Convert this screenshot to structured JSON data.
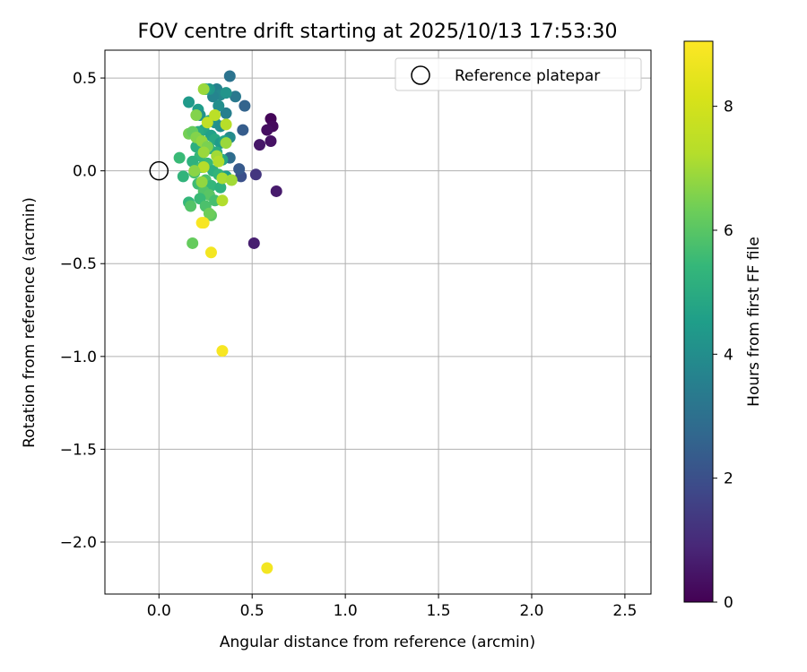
{
  "chart_data": {
    "type": "scatter",
    "title": "FOV centre drift starting at 2025/10/13 17:53:30",
    "xlabel": "Angular distance from reference (arcmin)",
    "ylabel": "Rotation from reference (arcmin)",
    "xlim": [
      -0.29,
      2.64
    ],
    "ylim": [
      -2.28,
      0.65
    ],
    "xticks": [
      0.0,
      0.5,
      1.0,
      1.5,
      2.0,
      2.5
    ],
    "xtick_labels": [
      "0.0",
      "0.5",
      "1.0",
      "1.5",
      "2.0",
      "2.5"
    ],
    "yticks": [
      0.5,
      0.0,
      -0.5,
      -1.0,
      -1.5,
      -2.0
    ],
    "ytick_labels": [
      "0.5",
      "0.0",
      "−0.5",
      "−1.0",
      "−1.5",
      "−2.0"
    ],
    "grid": true,
    "legend": {
      "position": "top-right",
      "label": "Reference platepar"
    },
    "reference_point": {
      "x": 0.0,
      "y": 0.0
    },
    "colorbar": {
      "label": "Hours from first FF file",
      "colormap": "viridis",
      "range": [
        0,
        9.05
      ],
      "ticks": [
        0,
        2,
        4,
        6,
        8
      ],
      "tick_labels": [
        "0",
        "2",
        "4",
        "6",
        "8"
      ]
    },
    "points": [
      {
        "x": 0.6,
        "y": 0.28,
        "t": 0.1
      },
      {
        "x": 0.61,
        "y": 0.24,
        "t": 0.2
      },
      {
        "x": 0.58,
        "y": 0.22,
        "t": 0.3
      },
      {
        "x": 0.6,
        "y": 0.16,
        "t": 0.4
      },
      {
        "x": 0.54,
        "y": 0.14,
        "t": 0.5
      },
      {
        "x": 0.63,
        "y": -0.11,
        "t": 0.6
      },
      {
        "x": 0.51,
        "y": -0.39,
        "t": 0.7
      },
      {
        "x": 0.52,
        "y": -0.02,
        "t": 1.3
      },
      {
        "x": 0.44,
        "y": -0.03,
        "t": 2.0
      },
      {
        "x": 0.43,
        "y": 0.01,
        "t": 2.3
      },
      {
        "x": 0.45,
        "y": 0.22,
        "t": 2.4
      },
      {
        "x": 0.46,
        "y": 0.35,
        "t": 2.6
      },
      {
        "x": 0.38,
        "y": 0.51,
        "t": 3.1
      },
      {
        "x": 0.41,
        "y": 0.4,
        "t": 3.3
      },
      {
        "x": 0.38,
        "y": 0.07,
        "t": 2.9
      },
      {
        "x": 0.36,
        "y": 0.31,
        "t": 3.5
      },
      {
        "x": 0.31,
        "y": 0.44,
        "t": 3.6
      },
      {
        "x": 0.33,
        "y": 0.41,
        "t": 3.8
      },
      {
        "x": 0.29,
        "y": 0.4,
        "t": 3.7
      },
      {
        "x": 0.36,
        "y": 0.42,
        "t": 4.2
      },
      {
        "x": 0.32,
        "y": 0.35,
        "t": 4.0
      },
      {
        "x": 0.38,
        "y": 0.18,
        "t": 3.9
      },
      {
        "x": 0.27,
        "y": 0.44,
        "t": 4.3
      },
      {
        "x": 0.25,
        "y": 0.44,
        "t": 4.6
      },
      {
        "x": 0.16,
        "y": 0.37,
        "t": 4.4
      },
      {
        "x": 0.21,
        "y": 0.33,
        "t": 4.5
      },
      {
        "x": 0.22,
        "y": 0.3,
        "t": 4.1
      },
      {
        "x": 0.27,
        "y": 0.27,
        "t": 4.7
      },
      {
        "x": 0.3,
        "y": 0.26,
        "t": 4.2
      },
      {
        "x": 0.33,
        "y": 0.24,
        "t": 4.0
      },
      {
        "x": 0.24,
        "y": 0.22,
        "t": 4.8
      },
      {
        "x": 0.21,
        "y": 0.21,
        "t": 5.0
      },
      {
        "x": 0.28,
        "y": 0.19,
        "t": 4.6
      },
      {
        "x": 0.3,
        "y": 0.17,
        "t": 4.9
      },
      {
        "x": 0.33,
        "y": 0.15,
        "t": 4.4
      },
      {
        "x": 0.35,
        "y": 0.16,
        "t": 4.7
      },
      {
        "x": 0.24,
        "y": 0.14,
        "t": 5.2
      },
      {
        "x": 0.2,
        "y": 0.13,
        "t": 5.1
      },
      {
        "x": 0.27,
        "y": 0.12,
        "t": 5.3
      },
      {
        "x": 0.22,
        "y": 0.08,
        "t": 5.4
      },
      {
        "x": 0.31,
        "y": 0.1,
        "t": 5.0
      },
      {
        "x": 0.34,
        "y": 0.06,
        "t": 4.8
      },
      {
        "x": 0.26,
        "y": 0.04,
        "t": 5.5
      },
      {
        "x": 0.18,
        "y": 0.05,
        "t": 5.2
      },
      {
        "x": 0.23,
        "y": 0.02,
        "t": 5.6
      },
      {
        "x": 0.29,
        "y": 0.0,
        "t": 5.1
      },
      {
        "x": 0.32,
        "y": -0.02,
        "t": 5.3
      },
      {
        "x": 0.19,
        "y": -0.01,
        "t": 5.7
      },
      {
        "x": 0.36,
        "y": -0.03,
        "t": 4.5
      },
      {
        "x": 0.25,
        "y": -0.05,
        "t": 5.8
      },
      {
        "x": 0.21,
        "y": -0.07,
        "t": 5.6
      },
      {
        "x": 0.28,
        "y": -0.08,
        "t": 5.4
      },
      {
        "x": 0.33,
        "y": -0.09,
        "t": 5.2
      },
      {
        "x": 0.24,
        "y": -0.11,
        "t": 5.9
      },
      {
        "x": 0.27,
        "y": -0.13,
        "t": 6.0
      },
      {
        "x": 0.22,
        "y": -0.15,
        "t": 5.5
      },
      {
        "x": 0.3,
        "y": -0.16,
        "t": 5.7
      },
      {
        "x": 0.25,
        "y": -0.19,
        "t": 5.8
      },
      {
        "x": 0.16,
        "y": -0.17,
        "t": 5.4
      },
      {
        "x": 0.17,
        "y": -0.19,
        "t": 5.9
      },
      {
        "x": 0.13,
        "y": -0.03,
        "t": 5.3
      },
      {
        "x": 0.11,
        "y": 0.07,
        "t": 5.5
      },
      {
        "x": 0.28,
        "y": -0.24,
        "t": 6.1
      },
      {
        "x": 0.27,
        "y": -0.23,
        "t": 6.3
      },
      {
        "x": 0.18,
        "y": -0.39,
        "t": 6.2
      },
      {
        "x": 0.16,
        "y": 0.2,
        "t": 6.4
      },
      {
        "x": 0.18,
        "y": 0.21,
        "t": 6.2
      },
      {
        "x": 0.2,
        "y": 0.18,
        "t": 6.6
      },
      {
        "x": 0.23,
        "y": 0.16,
        "t": 6.8
      },
      {
        "x": 0.26,
        "y": 0.13,
        "t": 6.5
      },
      {
        "x": 0.24,
        "y": 0.1,
        "t": 6.9
      },
      {
        "x": 0.31,
        "y": 0.08,
        "t": 7.0
      },
      {
        "x": 0.32,
        "y": 0.05,
        "t": 7.2
      },
      {
        "x": 0.24,
        "y": 0.02,
        "t": 7.3
      },
      {
        "x": 0.19,
        "y": 0.0,
        "t": 6.7
      },
      {
        "x": 0.34,
        "y": -0.04,
        "t": 7.1
      },
      {
        "x": 0.39,
        "y": -0.05,
        "t": 7.0
      },
      {
        "x": 0.23,
        "y": -0.06,
        "t": 6.8
      },
      {
        "x": 0.3,
        "y": 0.3,
        "t": 7.4
      },
      {
        "x": 0.26,
        "y": 0.26,
        "t": 7.5
      },
      {
        "x": 0.36,
        "y": 0.25,
        "t": 7.3
      },
      {
        "x": 0.24,
        "y": 0.44,
        "t": 6.9
      },
      {
        "x": 0.2,
        "y": 0.3,
        "t": 6.6
      },
      {
        "x": 0.34,
        "y": -0.16,
        "t": 7.2
      },
      {
        "x": 0.36,
        "y": 0.15,
        "t": 6.9
      },
      {
        "x": 0.23,
        "y": -0.28,
        "t": 9.0
      },
      {
        "x": 0.24,
        "y": -0.28,
        "t": 8.9
      },
      {
        "x": 0.28,
        "y": -0.44,
        "t": 8.8
      },
      {
        "x": 0.34,
        "y": -0.97,
        "t": 8.9
      },
      {
        "x": 0.58,
        "y": -2.14,
        "t": 8.8
      }
    ]
  }
}
